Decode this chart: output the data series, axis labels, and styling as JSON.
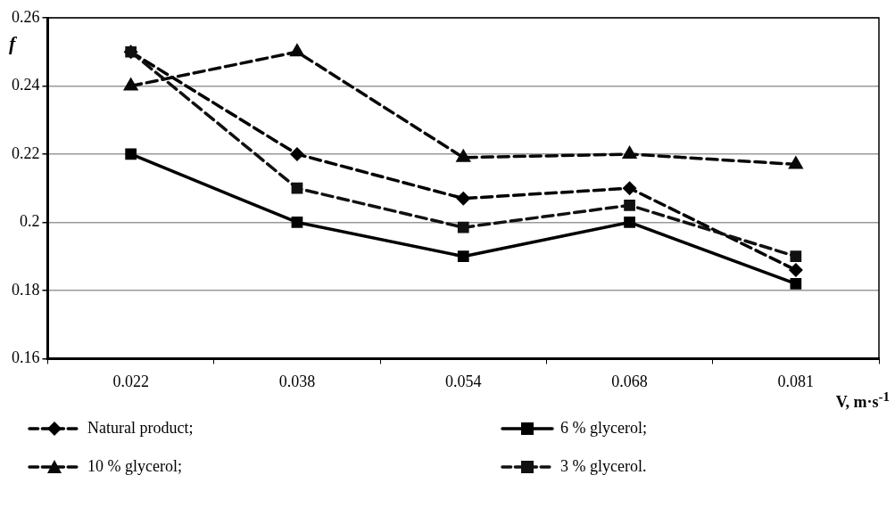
{
  "chart_data": {
    "type": "line",
    "xlabel": "V, m·s$^{-1}$",
    "ylabel": "f",
    "categories": [
      "0.022",
      "0.038",
      "0.054",
      "0.068",
      "0.081"
    ],
    "series": [
      {
        "name": "Natural product;",
        "color": "#000000",
        "marker": "diamond",
        "line_style": "dashed",
        "values": [
          0.25,
          0.22,
          0.207,
          0.21,
          0.186
        ]
      },
      {
        "name": "6 % glycerol;",
        "color": "#000000",
        "marker": "square",
        "line_style": "solid",
        "values": [
          0.22,
          0.2,
          0.19,
          0.2,
          0.182
        ]
      },
      {
        "name": "10 % glycerol;",
        "color": "#080808",
        "marker": "triangle",
        "line_style": "dashed",
        "values": [
          0.24,
          0.25,
          0.219,
          0.22,
          0.217
        ]
      },
      {
        "name": "3 % glycerol.",
        "color": "#111111",
        "marker": "square",
        "line_style": "dashed",
        "values": [
          0.25,
          0.21,
          0.1985,
          0.205,
          0.19
        ]
      }
    ],
    "ylim": [
      0.16,
      0.26
    ],
    "yticks": [
      0.16,
      0.18,
      0.2,
      0.22,
      0.24,
      0.26
    ],
    "grid": "y",
    "legend": "bottom"
  }
}
